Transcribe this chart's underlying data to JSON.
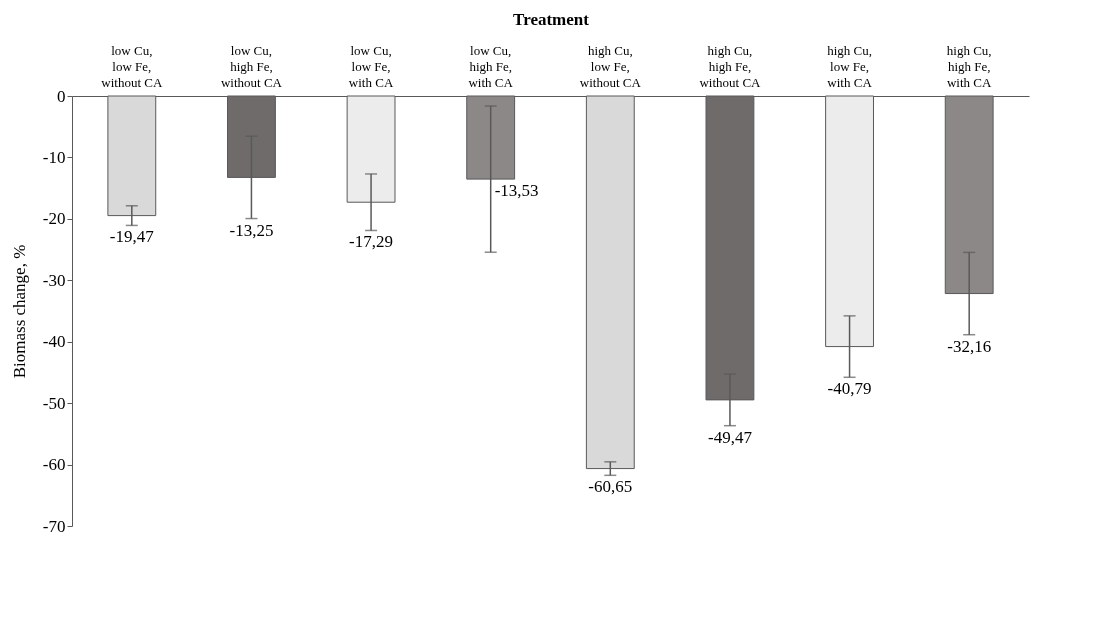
{
  "chart_data": {
    "type": "bar",
    "xlabel": "Treatment",
    "ylabel": "Biomass change, %",
    "categories": [
      "low Cu, low Fe, without CA",
      "low Cu, high Fe, without CA",
      "low Cu, low Fe, with CA",
      "low Cu, high Fe, with CA",
      "high Cu, low Fe, without CA",
      "high Cu, high Fe, without CA",
      "high Cu, low Fe, with CA",
      "high Cu, high Fe, with CA"
    ],
    "values": [
      -19.47,
      -13.25,
      -17.29,
      -13.53,
      -60.65,
      -49.47,
      -40.79,
      -32.16
    ],
    "errors": [
      1.6,
      6.7,
      4.6,
      11.9,
      1.1,
      4.2,
      5.0,
      6.7
    ],
    "value_labels": [
      "-19,47",
      "-13,25",
      "-17,29",
      "-13,53",
      "-60,65",
      "-49,47",
      "-40,79",
      "-32,16"
    ],
    "colors": [
      "#d9d9d9",
      "#6f6b6b",
      "#ececec",
      "#8c8888",
      "#d9d9d9",
      "#6f6b6b",
      "#ececec",
      "#8c8888"
    ],
    "ylim": [
      -70,
      0
    ],
    "yticks": [
      0,
      -10,
      -20,
      -30,
      -40,
      -50,
      -60,
      -70
    ],
    "grid": false
  }
}
